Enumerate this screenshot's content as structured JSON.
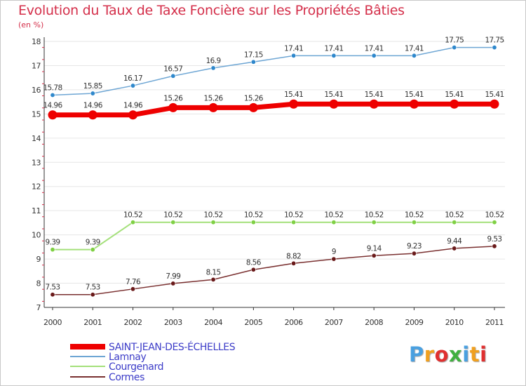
{
  "chart_data": {
    "type": "line",
    "title": "Evolution du Taux de Taxe Foncière sur les Propriétés Bâties",
    "ylabel": "(en %)",
    "xlabel": "",
    "x": [
      "2000",
      "2001",
      "2002",
      "2003",
      "2004",
      "2005",
      "2006",
      "2007",
      "2008",
      "2009",
      "2010",
      "2011"
    ],
    "ylim": [
      7,
      18
    ],
    "yticks": [
      "7",
      "8",
      "9",
      "10",
      "11",
      "12",
      "13",
      "14",
      "15",
      "16",
      "17",
      "18"
    ],
    "grid": "horizontal",
    "legend_position": "bottom-left",
    "series": [
      {
        "name": "SAINT-JEAN-DES-ÉCHELLES",
        "color": "#ee0000",
        "marker": "#ee0000",
        "width": 7,
        "values": [
          14.96,
          14.96,
          14.96,
          15.26,
          15.26,
          15.26,
          15.41,
          15.41,
          15.41,
          15.41,
          15.41,
          15.41
        ]
      },
      {
        "name": "Lamnay",
        "color": "#6ea6d4",
        "marker": "#2f88cc",
        "width": 1.5,
        "values": [
          15.78,
          15.85,
          16.17,
          16.57,
          16.9,
          17.15,
          17.41,
          17.41,
          17.41,
          17.41,
          17.75,
          17.75
        ]
      },
      {
        "name": "Courgenard",
        "color": "#a4e07a",
        "marker": "#7fd044",
        "width": 2,
        "values": [
          9.39,
          9.39,
          10.52,
          10.52,
          10.52,
          10.52,
          10.52,
          10.52,
          10.52,
          10.52,
          10.52,
          10.52
        ]
      },
      {
        "name": "Cormes",
        "color": "#7a3030",
        "marker": "#6a1a1a",
        "width": 1.5,
        "values": [
          7.53,
          7.53,
          7.76,
          7.99,
          8.15,
          8.56,
          8.82,
          9,
          9.14,
          9.23,
          9.44,
          9.53
        ]
      }
    ]
  },
  "logo": {
    "letters": [
      "P",
      "r",
      "o",
      "x",
      "i",
      "t",
      "i"
    ],
    "colors": [
      "#4aa0e0",
      "#f0a020",
      "#e03030",
      "#40b040",
      "#4aa0e0",
      "#f0a020",
      "#e03030"
    ]
  }
}
